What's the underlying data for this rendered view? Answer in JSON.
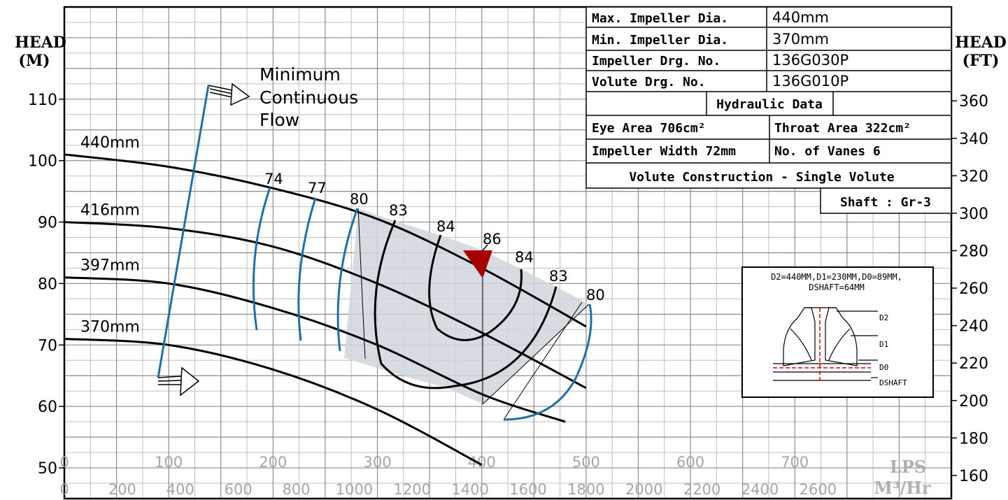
{
  "chart_data": {
    "type": "line",
    "title": "",
    "left_axis": {
      "label_line1": "HEAD",
      "label_line2": "(M)",
      "range": [
        45,
        125
      ],
      "ticks": [
        50,
        60,
        70,
        80,
        90,
        100,
        110
      ]
    },
    "right_axis": {
      "label_line1": "HEAD",
      "label_line2": "(FT)",
      "ticks": [
        160,
        180,
        200,
        220,
        240,
        260,
        280,
        300,
        320,
        340,
        360
      ]
    },
    "x_axis_lps": {
      "unit": "LPS",
      "range": [
        0,
        850
      ],
      "ticks": [
        0,
        100,
        200,
        300,
        400,
        500,
        600,
        700
      ]
    },
    "x_axis_m3hr": {
      "unit": "M³/Hr",
      "ticks": [
        0,
        200,
        400,
        600,
        800,
        1000,
        1200,
        1400,
        1600,
        1800,
        2000,
        2200,
        2400,
        2600
      ]
    },
    "grid": true,
    "series": [
      {
        "name": "440mm",
        "x": [
          0,
          100,
          200,
          300,
          400,
          500
        ],
        "y": [
          101,
          99,
          95.5,
          90.5,
          82.5,
          73
        ]
      },
      {
        "name": "416mm",
        "x": [
          0,
          100,
          200,
          300,
          400,
          500
        ],
        "y": [
          90,
          89,
          86,
          80,
          72,
          63
        ]
      },
      {
        "name": "397mm",
        "x": [
          0,
          100,
          200,
          300,
          400,
          480
        ],
        "y": [
          81,
          80,
          76,
          70,
          62,
          57.5
        ]
      },
      {
        "name": "370mm",
        "x": [
          0,
          100,
          200,
          300,
          400
        ],
        "y": [
          71,
          70,
          66,
          59.5,
          50.5
        ]
      }
    ],
    "efficiency_labels": [
      "74",
      "77",
      "80",
      "83",
      "84",
      "86",
      "84",
      "83",
      "80"
    ],
    "bep": {
      "x": 400,
      "y": 84.5
    },
    "annotation": {
      "line1": "Minimum",
      "line2": "Continuous",
      "line3": "Flow"
    },
    "info_table": {
      "rows": [
        {
          "label": "Max. Impeller Dia.",
          "value": "440mm"
        },
        {
          "label": "Min. Impeller Dia.",
          "value": "370mm"
        },
        {
          "label": "Impeller Drg. No.",
          "value": "136G030P"
        },
        {
          "label": "Volute Drg. No.",
          "value": "136G010P"
        }
      ],
      "hydraulic_header": "Hydraulic Data",
      "eye_area": "Eye Area 706cm²",
      "throat_area": "Throat Area 322cm²",
      "impeller_width": "Impeller Width 72mm",
      "vanes": "No. of Vanes 6",
      "volute": "Volute Construction - Single Volute",
      "shaft": "Shaft : Gr-3"
    },
    "impeller_inset": {
      "line1": "D2=440MM,D1=230MM,D0=89MM,",
      "line2": "DSHAFT=64MM",
      "labels": [
        "D2",
        "D1",
        "D0",
        "DSHAFT"
      ]
    }
  }
}
